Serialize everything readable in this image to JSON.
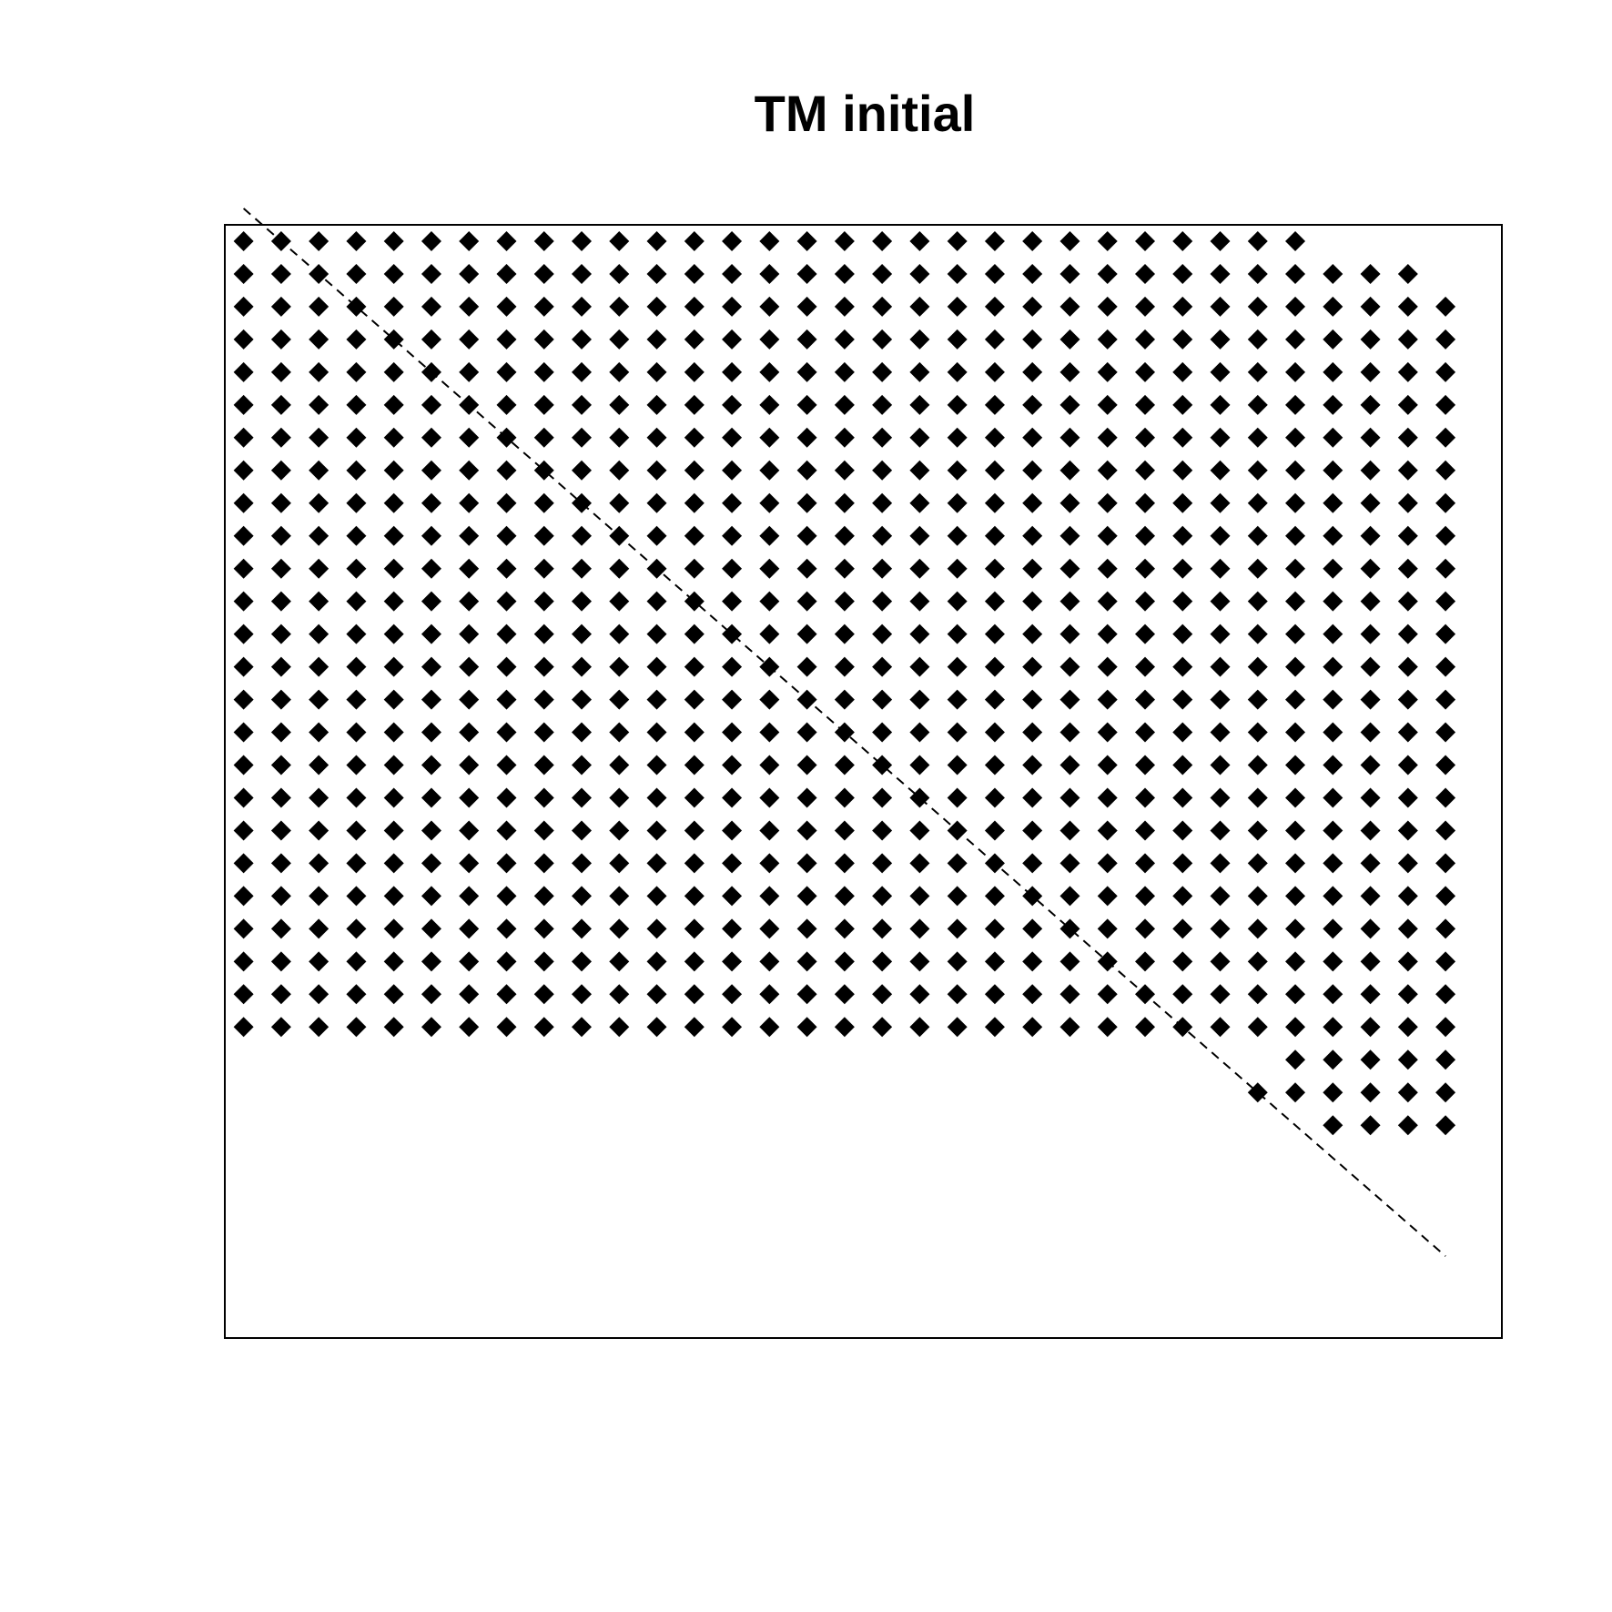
{
  "chart_data": {
    "type": "scatter",
    "title": "TM initial",
    "xlabel": "",
    "ylabel": "",
    "axes_shown": false,
    "grid": false,
    "legend": "none",
    "marker": "filled-diamond",
    "marker_color": "#000000",
    "xlim": [
      0.5,
      34.5
    ],
    "ylim": [
      -34.5,
      -0.5
    ],
    "grid_columns": 33,
    "grid_rows": 33,
    "row_spans": [
      {
        "row": 1,
        "cols": [
          1,
          29
        ]
      },
      {
        "row": 2,
        "cols": [
          1,
          32
        ]
      },
      {
        "row": 3,
        "cols": [
          1,
          33
        ]
      },
      {
        "row": 4,
        "cols": [
          1,
          33
        ]
      },
      {
        "row": 5,
        "cols": [
          1,
          33
        ]
      },
      {
        "row": 6,
        "cols": [
          1,
          33
        ]
      },
      {
        "row": 7,
        "cols": [
          1,
          33
        ]
      },
      {
        "row": 8,
        "cols": [
          1,
          33
        ]
      },
      {
        "row": 9,
        "cols": [
          1,
          33
        ]
      },
      {
        "row": 10,
        "cols": [
          1,
          33
        ]
      },
      {
        "row": 11,
        "cols": [
          1,
          33
        ]
      },
      {
        "row": 12,
        "cols": [
          1,
          33
        ]
      },
      {
        "row": 13,
        "cols": [
          1,
          33
        ]
      },
      {
        "row": 14,
        "cols": [
          1,
          33
        ]
      },
      {
        "row": 15,
        "cols": [
          1,
          33
        ]
      },
      {
        "row": 16,
        "cols": [
          1,
          33
        ]
      },
      {
        "row": 17,
        "cols": [
          1,
          33
        ]
      },
      {
        "row": 18,
        "cols": [
          1,
          33
        ]
      },
      {
        "row": 19,
        "cols": [
          1,
          33
        ]
      },
      {
        "row": 20,
        "cols": [
          1,
          33
        ]
      },
      {
        "row": 21,
        "cols": [
          1,
          33
        ]
      },
      {
        "row": 22,
        "cols": [
          1,
          33
        ]
      },
      {
        "row": 23,
        "cols": [
          1,
          33
        ]
      },
      {
        "row": 24,
        "cols": [
          1,
          33
        ]
      },
      {
        "row": 25,
        "cols": [
          1,
          33
        ]
      },
      {
        "row": 26,
        "cols": [
          29,
          33
        ]
      },
      {
        "row": 27,
        "cols": [
          28,
          33
        ]
      },
      {
        "row": 28,
        "cols": [
          30,
          33
        ]
      }
    ],
    "reference_line": {
      "style": "dashed",
      "from": [
        1,
        0
      ],
      "to": [
        33,
        -32
      ]
    }
  }
}
